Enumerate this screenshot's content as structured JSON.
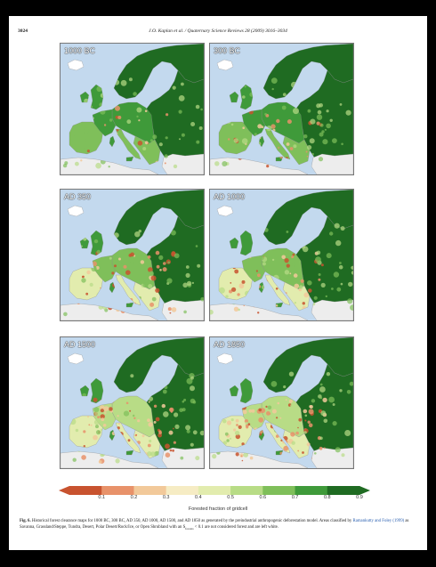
{
  "header": {
    "page_number": "3024",
    "journal": "J.O. Kaplan et al. / Quaternary Science Reviews 28 (2009) 3016–3034"
  },
  "figure": {
    "panels": [
      {
        "label": "1000 BC"
      },
      {
        "label": "300 BC"
      },
      {
        "label": "AD 350"
      },
      {
        "label": "AD 1000"
      },
      {
        "label": "AD 1500"
      },
      {
        "label": "AD 1850"
      }
    ],
    "colorbar": {
      "ticks": [
        "0.1",
        "0.2",
        "0.3",
        "0.4",
        "0.5",
        "0.6",
        "0.7",
        "0.8",
        "0.9"
      ],
      "title": "Forested fraction of gridcell",
      "colors": [
        "#c8532f",
        "#e8926a",
        "#f2c99a",
        "#f6ecc4",
        "#e2ecae",
        "#b8dc86",
        "#7fbf5a",
        "#3f9a3a",
        "#1f6b22"
      ]
    },
    "colors": {
      "sea": "#c3d9ee",
      "land_outside": "#ededed",
      "forest_dense": "#1f6b22"
    }
  },
  "caption": {
    "fig_label": "Fig. 6.",
    "text_1": "Historical forest clearance maps for 1000 BC, 300 BC, AD 350, AD 1000, AD 1500, and AD 1850 as generated by the preindustrial anthropogenic deforestation model. Areas classified by",
    "citation": "Ramankutty and Foley (1999)",
    "text_2": "as Savanna, Grassland/Steppe, Tundra, Desert, Polar Desert/Rock/Ice, or Open Shrubland with an S",
    "subscript": "forests",
    "text_3": "< 0.1 are not considered forest and are left white."
  }
}
